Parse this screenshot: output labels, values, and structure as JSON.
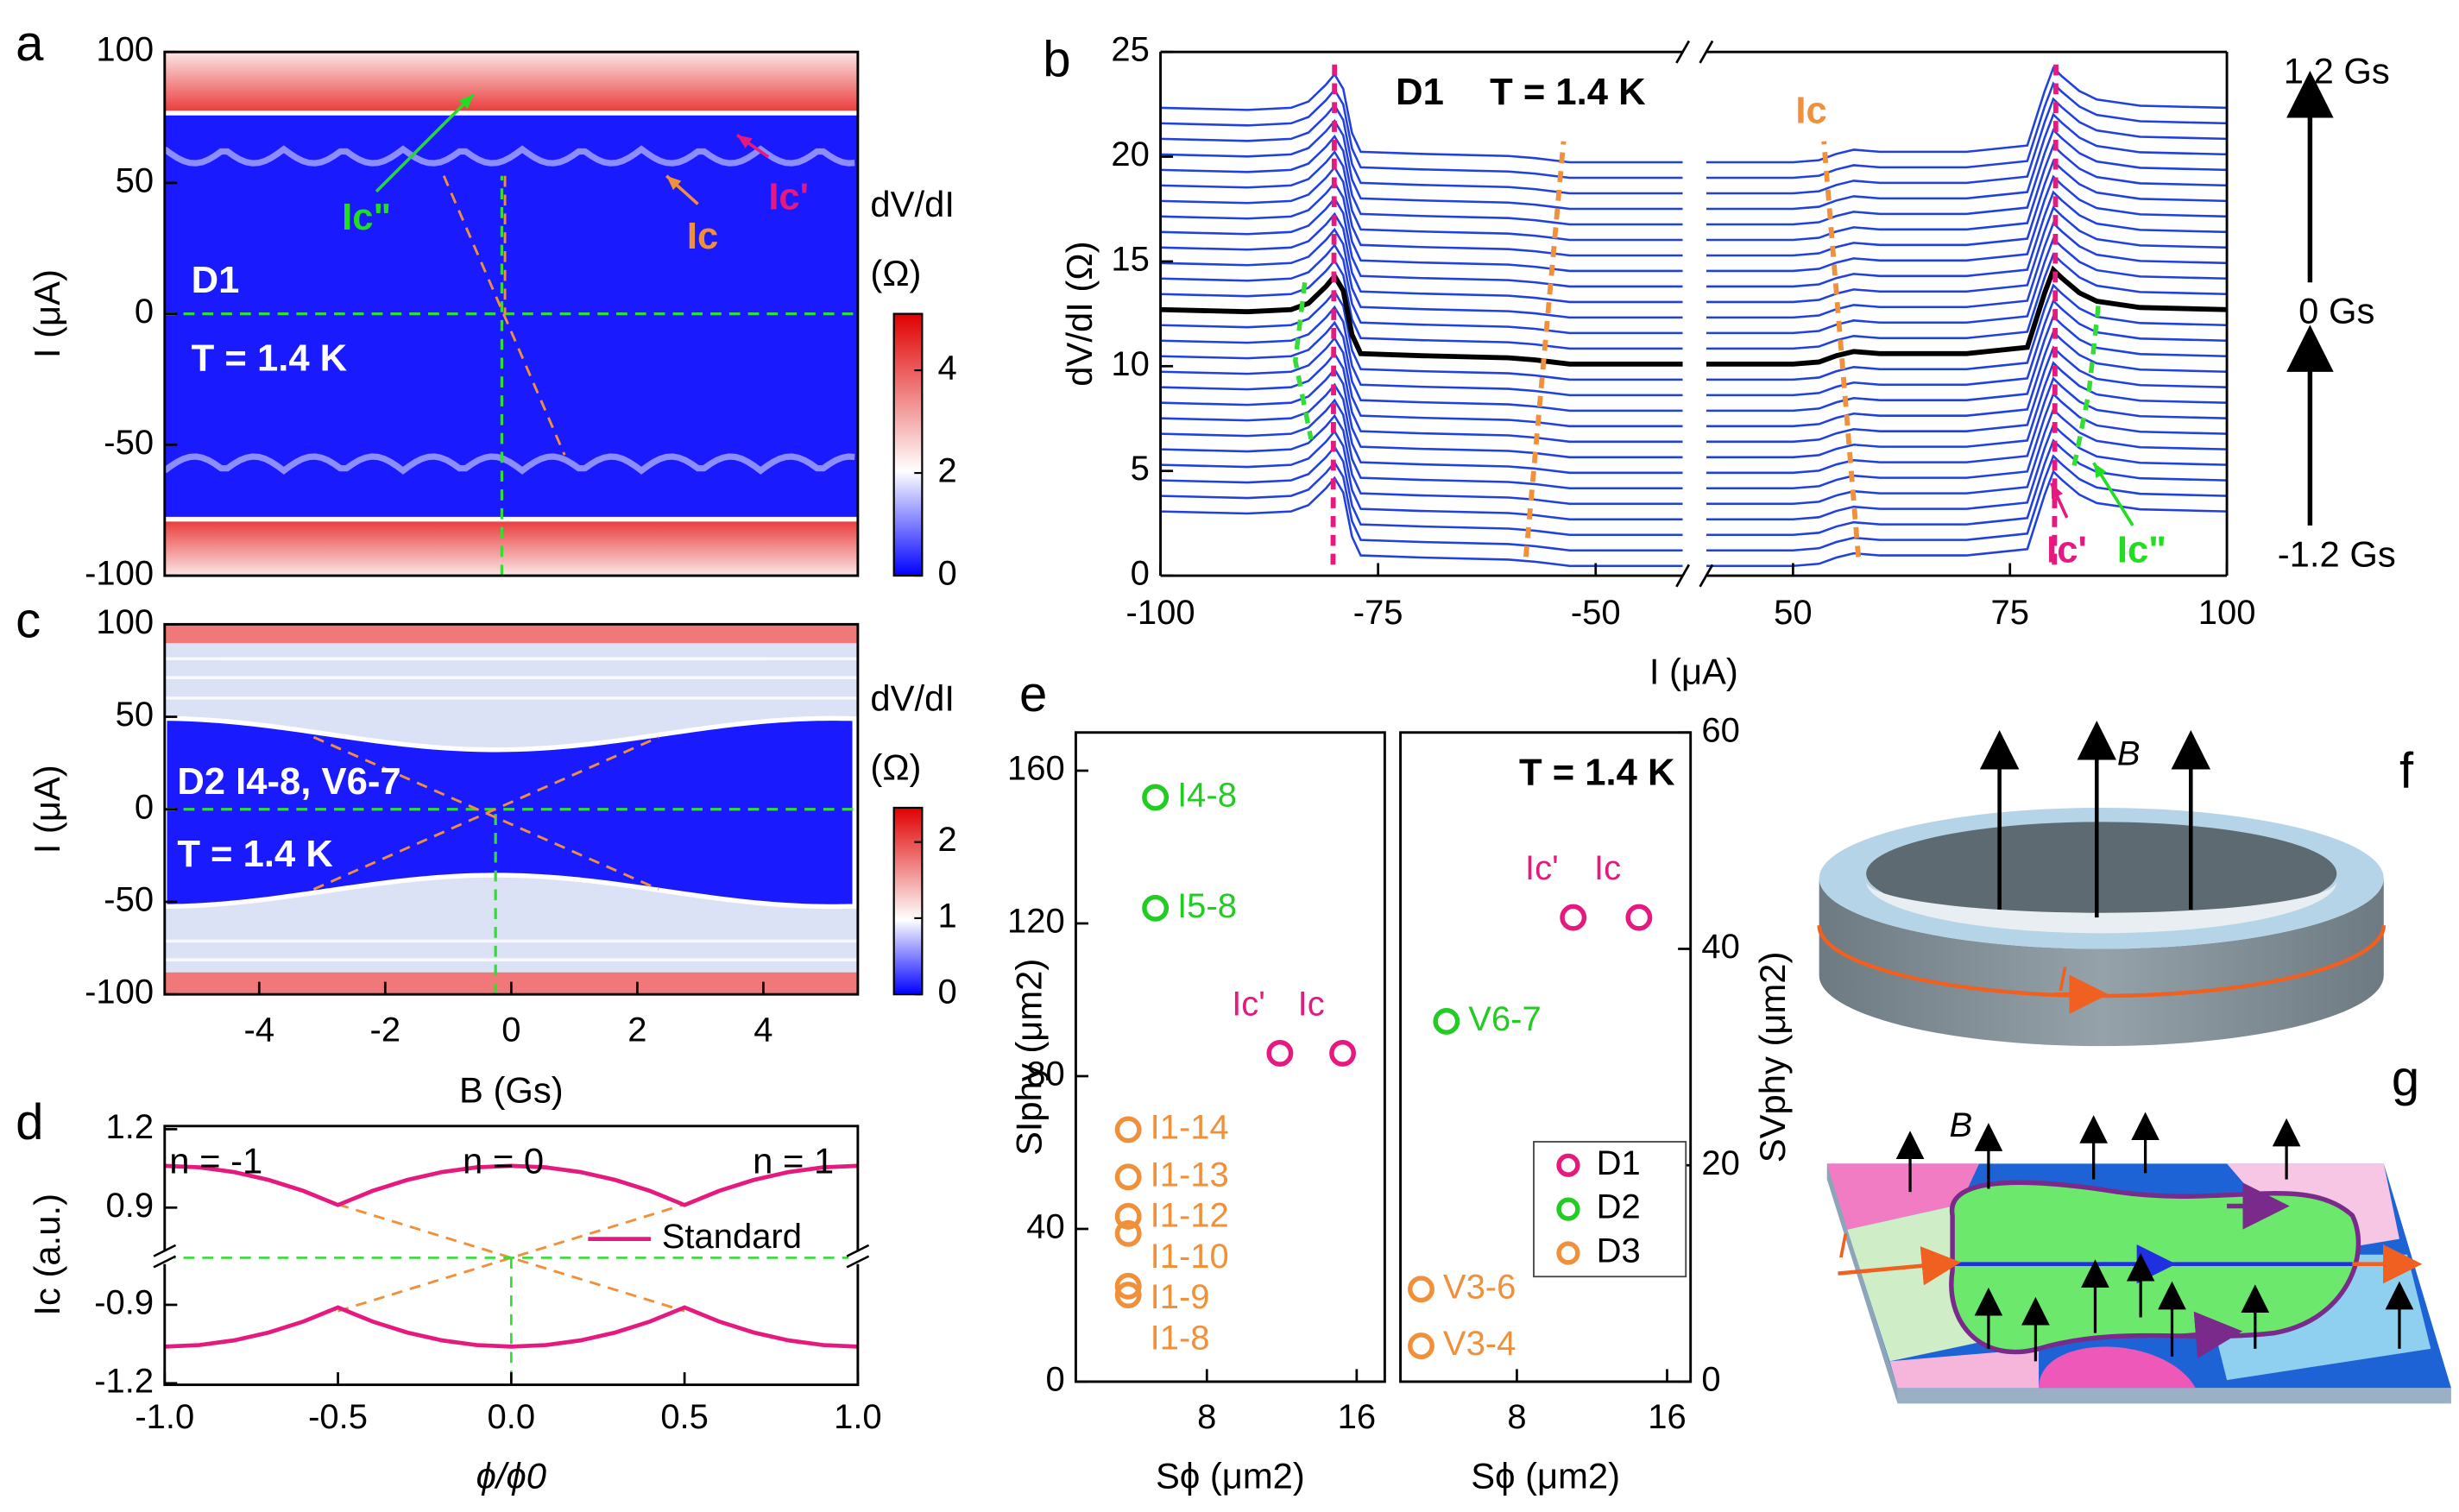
{
  "chart_data": [
    {
      "type": "heatmap",
      "panel": "a",
      "ylabel": "I (μA)",
      "ylim": [
        -100,
        100
      ],
      "yticks": [
        -100,
        -50,
        0,
        50,
        100
      ],
      "colorbar_label": [
        "dV/dI",
        "(Ω)"
      ],
      "colorbar_lim": [
        0,
        5.1
      ],
      "colorbar_ticks": [
        0,
        2,
        4
      ],
      "annotations": [
        "D1",
        "T = 1.4 K",
        "Ic\"",
        "Ic",
        "Ic'"
      ]
    },
    {
      "type": "line",
      "panel": "b",
      "xlabel": "I (μA)",
      "ylabel": "dV/dI (Ω)",
      "xlim": [
        -100,
        100
      ],
      "xbreak": [
        -40,
        40
      ],
      "xticks": [
        -100,
        -75,
        -50,
        50,
        75,
        100
      ],
      "ylim": [
        0,
        25
      ],
      "yticks": [
        0,
        5,
        10,
        15,
        20,
        25
      ],
      "field_labels": [
        "1.2 Gs",
        "-1.2 Gs"
      ],
      "annotations": [
        "D1",
        "T = 1.4 K",
        "Ic",
        "Ic'",
        "Ic\""
      ],
      "series": [
        {
          "name": "0 Gs",
          "color": "#000000",
          "x": [
            -100,
            -90,
            -85,
            -83,
            -81,
            -80,
            -79,
            -78,
            -77,
            -70,
            -60,
            -57,
            -55,
            -53,
            -45,
            -40,
            0,
            40,
            50,
            53,
            55,
            57,
            60,
            70,
            77,
            79,
            80,
            81,
            83,
            85,
            90,
            100
          ],
          "values": [
            12.7,
            12.6,
            12.7,
            13.0,
            13.8,
            14.3,
            13.6,
            11.5,
            10.6,
            10.5,
            10.4,
            10.3,
            10.2,
            10.1,
            10.1,
            10.1,
            null,
            10.1,
            10.1,
            10.2,
            10.5,
            10.7,
            10.6,
            10.6,
            10.9,
            13.5,
            14.6,
            14.2,
            13.5,
            13.1,
            12.8,
            12.7
          ]
        }
      ]
    },
    {
      "type": "heatmap",
      "panel": "c",
      "xlabel": "B (Gs)",
      "ylabel": "I (μA)",
      "xlim": [
        -5.5,
        5.5
      ],
      "xticks": [
        -4,
        -2,
        0,
        2,
        4
      ],
      "ylim": [
        -100,
        100
      ],
      "yticks": [
        -100,
        -50,
        0,
        50,
        100
      ],
      "colorbar_label": [
        "dV/dI",
        "(Ω)"
      ],
      "colorbar_lim": [
        0,
        2.45
      ],
      "colorbar_ticks": [
        0,
        1,
        2
      ],
      "annotations": [
        "D2 I4-8, V6-7",
        "T = 1.4 K"
      ]
    },
    {
      "type": "line",
      "panel": "d",
      "xlabel": "ϕ/ϕ0",
      "ylabel": "Ic (a.u.)",
      "xlim": [
        -1,
        1
      ],
      "xticks": [
        {
          "value": -1,
          "label": "-1.0"
        },
        -0.5,
        {
          "value": 0,
          "label": "0.0"
        },
        0.5,
        {
          "value": 1,
          "label": "1.0"
        }
      ],
      "ylim": [
        -1.2,
        1.2
      ],
      "ybreak": [
        -0.9,
        0.9
      ],
      "yticks": [
        1.2,
        0.9,
        -0.9,
        -1.2
      ],
      "annotations": [
        "n = -1",
        "n = 0",
        "n = 1"
      ],
      "x": [
        -1,
        -0.9,
        -0.8,
        -0.7,
        -0.6,
        -0.5,
        -0.4,
        -0.3,
        -0.2,
        -0.1,
        0,
        0.1,
        0.2,
        0.3,
        0.4,
        0.5,
        0.6,
        0.7,
        0.8,
        0.9,
        1
      ],
      "series": [
        {
          "name": "Standard",
          "color": "#e6197e",
          "values": [
            1.06,
            1.054,
            1.036,
            1.006,
            0.964,
            0.91,
            0.964,
            1.006,
            1.036,
            1.054,
            1.06,
            1.054,
            1.036,
            1.006,
            0.964,
            0.91,
            0.964,
            1.006,
            1.036,
            1.054,
            1.06
          ]
        },
        {
          "color": "#e6197e",
          "values": [
            -1.06,
            -1.054,
            -1.036,
            -1.006,
            -0.964,
            -0.91,
            -0.964,
            -1.006,
            -1.036,
            -1.054,
            -1.06,
            -1.054,
            -1.036,
            -1.006,
            -0.964,
            -0.91,
            -0.964,
            -1.006,
            -1.036,
            -1.054,
            -1.06
          ]
        }
      ]
    },
    {
      "type": "scatter",
      "panel": "e",
      "xlabel": "Sϕ (μm2)",
      "ylabel": "SIphy (μm2)",
      "xlim": [
        1,
        17.5
      ],
      "xticks": [
        8,
        16
      ],
      "ylim": [
        0,
        170
      ],
      "yticks": [
        0,
        40,
        80,
        120,
        160
      ],
      "series": [
        {
          "color": "#e6197e",
          "x": [
            11.9,
            15.25
          ],
          "values": [
            86,
            86
          ],
          "labels": [
            "Ic'",
            "Ic"
          ]
        },
        {
          "color": "#22cc22",
          "x": [
            5.25,
            5.25
          ],
          "values": [
            153,
            124
          ],
          "labels": [
            "I4-8",
            "I5-8"
          ]
        },
        {
          "color": "#f0903a",
          "x": [
            3.8,
            3.8,
            3.8,
            3.8,
            3.8,
            3.8
          ],
          "values": [
            66,
            53.6,
            43.3,
            38.8,
            25,
            22.7
          ],
          "labels": [
            "I1-14",
            "I1-13",
            "I1-12",
            "I1-10",
            "I1-9",
            "I1-8"
          ]
        }
      ]
    },
    {
      "type": "scatter",
      "title": "T = 1.4 K",
      "xlabel": "Sϕ (μm2)",
      "y2label": "SVphy (μm2)",
      "xlim": [
        1.8,
        17.25
      ],
      "xticks": [
        8,
        16
      ],
      "y2lim": [
        0,
        60
      ],
      "y2ticks": [
        0,
        20,
        40,
        60
      ],
      "legend": "right",
      "series": [
        {
          "name": "D1",
          "color": "#e6197e",
          "axis": "y2",
          "x": [
            11,
            14.5
          ],
          "values": [
            42.9,
            42.9
          ],
          "labels": [
            "Ic'",
            "Ic"
          ]
        },
        {
          "name": "D2",
          "color": "#22cc22",
          "axis": "y2",
          "x": [
            4.25
          ],
          "values": [
            33.3
          ],
          "labels": [
            "V6-7"
          ]
        },
        {
          "name": "D3",
          "color": "#f0903a",
          "axis": "y2",
          "x": [
            2.9,
            2.9
          ],
          "values": [
            8.55,
            3.3
          ],
          "labels": [
            "V3-6",
            "V3-4"
          ]
        }
      ]
    }
  ],
  "illustrations": [
    {
      "panel": "f",
      "labels": [
        "B",
        "I"
      ]
    },
    {
      "panel": "g",
      "labels": [
        "B",
        "I"
      ]
    }
  ]
}
